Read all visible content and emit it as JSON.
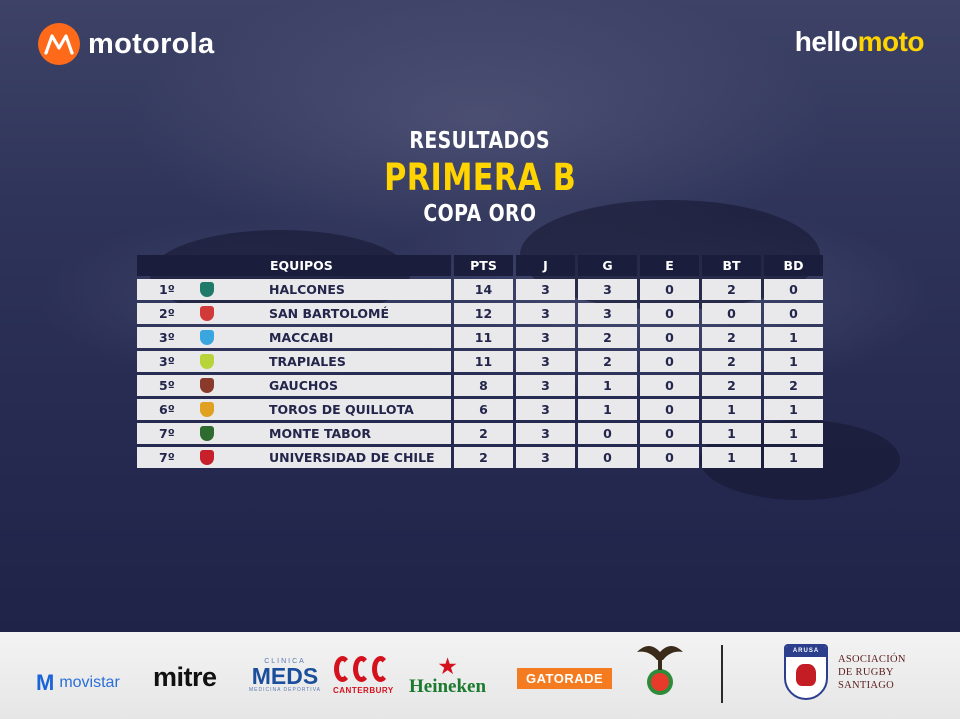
{
  "brand": {
    "motorola_logo": "motorola",
    "hellomoto_white": "hello",
    "hellomoto_yellow": "moto"
  },
  "headings": {
    "line1": "RESULTADOS",
    "line2": "PRIMERA B",
    "line3": "COPA ORO"
  },
  "table": {
    "columns": [
      "EQUIPOS",
      "PTS",
      "J",
      "G",
      "E",
      "BT",
      "BD"
    ],
    "rows": [
      {
        "pos": "1º",
        "team": "HALCONES",
        "crest_color": "#1f7a6a",
        "pts": "14",
        "j": "3",
        "g": "3",
        "e": "0",
        "bt": "2",
        "bd": "0"
      },
      {
        "pos": "2º",
        "team": "SAN BARTOLOMÉ",
        "crest_color": "#d23a3a",
        "pts": "12",
        "j": "3",
        "g": "3",
        "e": "0",
        "bt": "0",
        "bd": "0"
      },
      {
        "pos": "3º",
        "team": "MACCABI",
        "crest_color": "#3aa6e0",
        "pts": "11",
        "j": "3",
        "g": "2",
        "e": "0",
        "bt": "2",
        "bd": "1"
      },
      {
        "pos": "3º",
        "team": "TRAPIALES",
        "crest_color": "#b8d43a",
        "pts": "11",
        "j": "3",
        "g": "2",
        "e": "0",
        "bt": "2",
        "bd": "1"
      },
      {
        "pos": "5º",
        "team": "GAUCHOS",
        "crest_color": "#8a3a2a",
        "pts": "8",
        "j": "3",
        "g": "1",
        "e": "0",
        "bt": "2",
        "bd": "2"
      },
      {
        "pos": "6º",
        "team": "TOROS DE QUILLOTA",
        "crest_color": "#e0a020",
        "pts": "6",
        "j": "3",
        "g": "1",
        "e": "0",
        "bt": "1",
        "bd": "1"
      },
      {
        "pos": "7º",
        "team": "MONTE TABOR",
        "crest_color": "#2e6b2e",
        "pts": "2",
        "j": "3",
        "g": "0",
        "e": "0",
        "bt": "1",
        "bd": "1"
      },
      {
        "pos": "7º",
        "team": "UNIVERSIDAD DE CHILE",
        "crest_color": "#c8202a",
        "pts": "2",
        "j": "3",
        "g": "0",
        "e": "0",
        "bt": "1",
        "bd": "1"
      }
    ]
  },
  "sponsors": {
    "movistar": "movistar",
    "mitre": "mitre",
    "meds_top": "CLINICA",
    "meds": "MEDS",
    "meds_sub": "MEDICINA DEPORTIVA",
    "canterbury": "CANTERBURY",
    "heineken": "Heineken",
    "gatorade": "GATORADE",
    "arusa_band": "ARUSA",
    "arusa_line1": "ASOCIACIÓN",
    "arusa_line2": "DE RUGBY",
    "arusa_line3": "SANTIAGO"
  },
  "colors": {
    "accent_yellow": "#ffd400",
    "motorola_orange": "#ff6a1a",
    "header_row": "#1a1d3c",
    "body_row": "#e9e9ec"
  }
}
